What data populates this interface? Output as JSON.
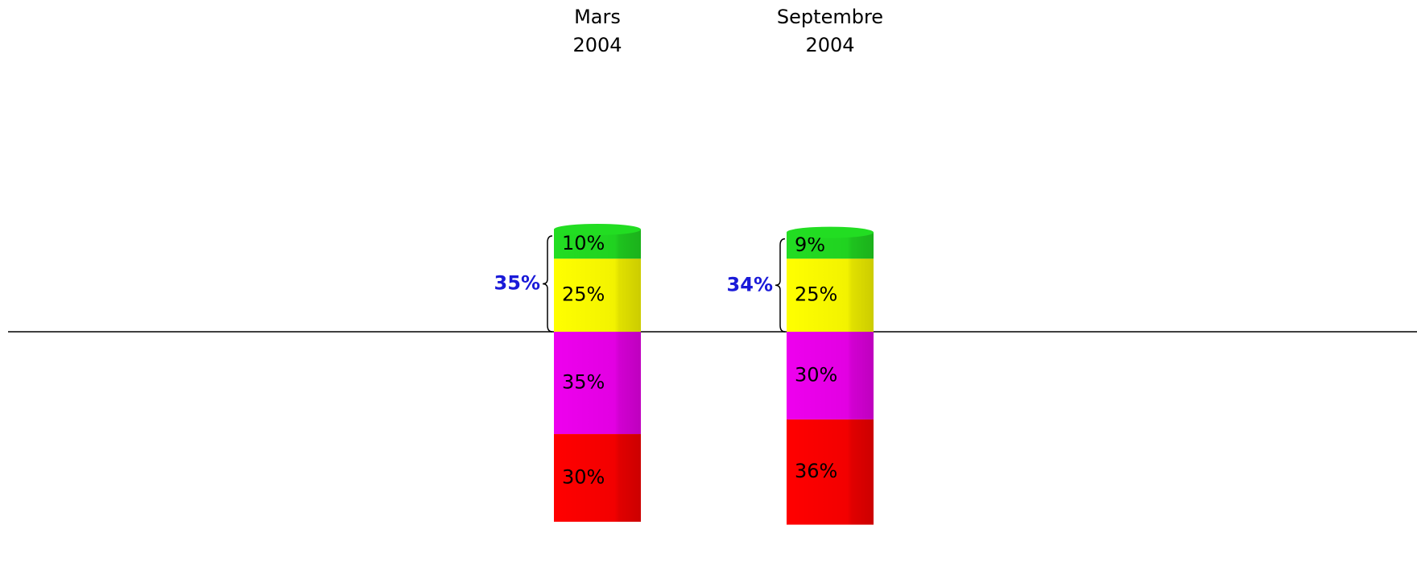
{
  "chart_data": {
    "type": "stacked-bar",
    "categories": [
      "Mars\n2004",
      "Septembre\n2004"
    ],
    "series": [
      {
        "name": null,
        "color": "#ff0000",
        "values": [
          30,
          36
        ],
        "value_labels": [
          "30%",
          "36%"
        ]
      },
      {
        "name": null,
        "color": "#ee00ee",
        "values": [
          35,
          30
        ],
        "value_labels": [
          "35%",
          "30%"
        ]
      },
      {
        "name": null,
        "color": "#ffff00",
        "values": [
          25,
          25
        ],
        "value_labels": [
          "25%",
          "25%"
        ]
      },
      {
        "name": null,
        "color": "#22dd22",
        "values": [
          10,
          9
        ],
        "value_labels": [
          "10%",
          "9%"
        ]
      }
    ],
    "brace": {
      "series": [
        2,
        3
      ],
      "values": [
        35,
        34
      ],
      "value_labels": [
        "35%",
        "34%"
      ],
      "color": "#1a1ad8"
    }
  }
}
